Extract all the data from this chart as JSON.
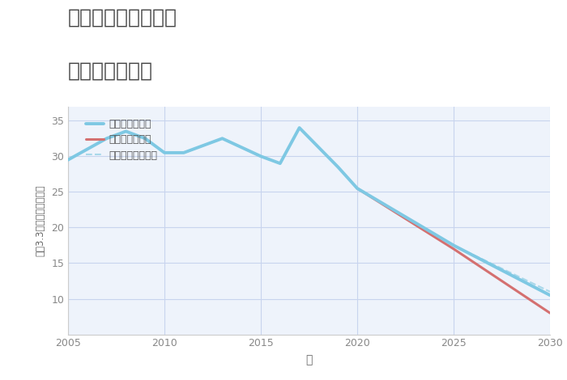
{
  "title_line1": "愛知県一宮市大毛の",
  "title_line2": "土地の価格推移",
  "xlabel": "年",
  "ylabel": "坪（3.3㎡）単価（万円）",
  "xlim": [
    2005,
    2030
  ],
  "ylim": [
    5,
    37
  ],
  "yticks": [
    10,
    15,
    20,
    25,
    30,
    35
  ],
  "xticks": [
    2005,
    2010,
    2015,
    2020,
    2025,
    2030
  ],
  "background_color": "#ffffff",
  "plot_bg_color": "#eef3fb",
  "grid_color": "#c8d4ee",
  "good_scenario": {
    "label": "グッドシナリオ",
    "color": "#7ec8e3",
    "linewidth": 2.8,
    "x": [
      2005,
      2007,
      2008,
      2009,
      2010,
      2011,
      2013,
      2015,
      2016,
      2017,
      2019,
      2020,
      2025,
      2030
    ],
    "y": [
      29.5,
      32.5,
      33.5,
      32.5,
      30.5,
      30.5,
      32.5,
      30.0,
      29.0,
      34.0,
      28.5,
      25.5,
      17.5,
      10.5
    ]
  },
  "bad_scenario": {
    "label": "バッドシナリオ",
    "color": "#d47070",
    "linewidth": 2.2,
    "x": [
      2020,
      2025,
      2030
    ],
    "y": [
      25.5,
      17.0,
      8.0
    ]
  },
  "normal_scenario": {
    "label": "ノーマルシナリオ",
    "color": "#a8d8ea",
    "linewidth": 1.5,
    "linestyle": "--",
    "x": [
      2020,
      2025,
      2030
    ],
    "y": [
      25.5,
      17.5,
      11.0
    ]
  },
  "title_color": "#444444",
  "tick_color": "#888888",
  "label_color": "#666666",
  "legend_label_color": "#555555",
  "title_fontsize": 18,
  "legend_fontsize": 9,
  "axis_fontsize": 10
}
